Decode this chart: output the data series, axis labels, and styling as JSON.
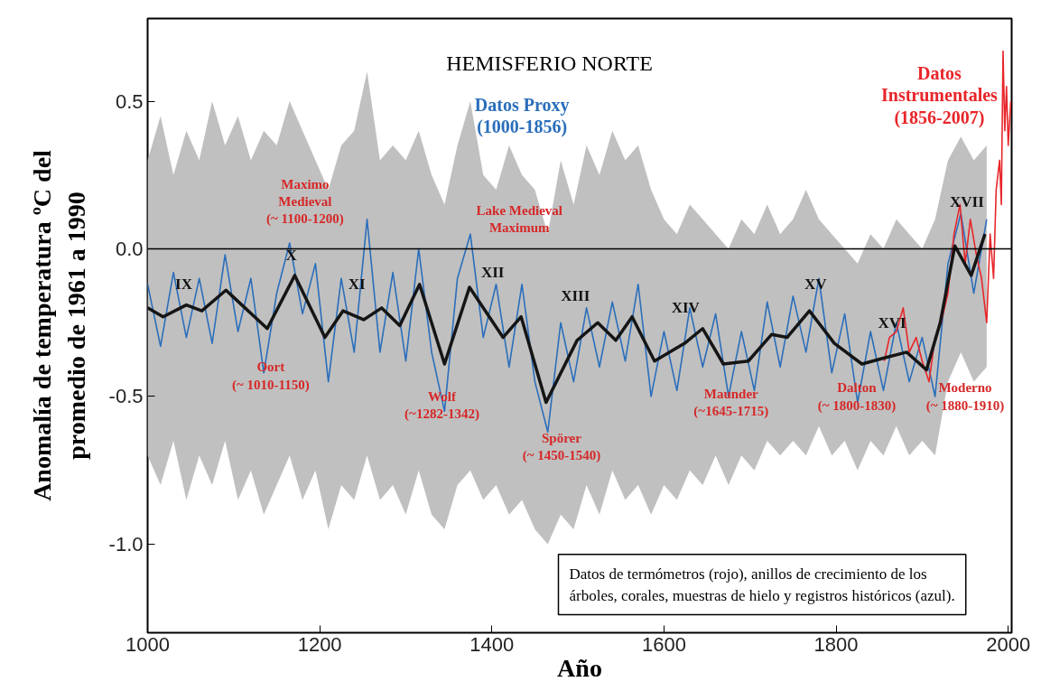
{
  "chart_data": {
    "type": "line",
    "title": "HEMISFERIO NORTE",
    "xlabel": "Año",
    "ylabel": "Anomalía de temperatura ºC del\npromedio de 1961 a 1990",
    "x": [
      1000,
      1015,
      1030,
      1045,
      1060,
      1075,
      1090,
      1105,
      1120,
      1135,
      1150,
      1165,
      1180,
      1195,
      1210,
      1225,
      1240,
      1255,
      1270,
      1285,
      1300,
      1315,
      1330,
      1345,
      1360,
      1375,
      1390,
      1405,
      1420,
      1435,
      1450,
      1465,
      1480,
      1495,
      1510,
      1525,
      1540,
      1555,
      1570,
      1585,
      1600,
      1615,
      1630,
      1645,
      1660,
      1675,
      1690,
      1705,
      1720,
      1735,
      1750,
      1765,
      1780,
      1795,
      1810,
      1825,
      1840,
      1855,
      1870,
      1885,
      1900,
      1915,
      1930,
      1945,
      1960,
      1975
    ],
    "series": [
      {
        "name": "Datos Proxy\n(1000-1856)",
        "color": "#2a6ebb",
        "values": [
          -0.12,
          -0.33,
          -0.08,
          -0.3,
          -0.1,
          -0.32,
          -0.02,
          -0.28,
          -0.1,
          -0.42,
          -0.15,
          0.02,
          -0.22,
          -0.05,
          -0.45,
          -0.1,
          -0.35,
          0.1,
          -0.35,
          -0.08,
          -0.38,
          0.0,
          -0.35,
          -0.55,
          -0.1,
          0.05,
          -0.3,
          -0.12,
          -0.4,
          -0.12,
          -0.45,
          -0.62,
          -0.25,
          -0.45,
          -0.2,
          -0.4,
          -0.18,
          -0.38,
          -0.12,
          -0.5,
          -0.28,
          -0.48,
          -0.2,
          -0.4,
          -0.22,
          -0.5,
          -0.28,
          -0.48,
          -0.18,
          -0.4,
          -0.16,
          -0.35,
          -0.1,
          -0.42,
          -0.22,
          -0.52,
          -0.28,
          -0.48,
          -0.25,
          -0.45,
          -0.3,
          -0.5,
          -0.05,
          0.12,
          -0.15,
          0.1
        ],
        "upper": [
          0.3,
          0.45,
          0.25,
          0.4,
          0.3,
          0.5,
          0.35,
          0.45,
          0.3,
          0.4,
          0.35,
          0.5,
          0.4,
          0.3,
          0.2,
          0.35,
          0.4,
          0.6,
          0.3,
          0.35,
          0.3,
          0.4,
          0.25,
          0.15,
          0.35,
          0.5,
          0.25,
          0.2,
          0.35,
          0.25,
          0.2,
          0.05,
          0.3,
          0.15,
          0.35,
          0.25,
          0.4,
          0.3,
          0.35,
          0.2,
          0.1,
          0.05,
          0.15,
          0.1,
          0.05,
          0.0,
          0.1,
          0.05,
          0.15,
          0.05,
          0.1,
          0.2,
          0.1,
          0.05,
          0.0,
          -0.05,
          0.05,
          0.0,
          0.1,
          0.05,
          0.0,
          0.1,
          0.3,
          0.38,
          0.3,
          0.35
        ],
        "lower": [
          -0.7,
          -0.8,
          -0.65,
          -0.85,
          -0.7,
          -0.8,
          -0.65,
          -0.85,
          -0.75,
          -0.9,
          -0.8,
          -0.7,
          -0.85,
          -0.75,
          -0.95,
          -0.8,
          -0.85,
          -0.7,
          -0.85,
          -0.8,
          -0.9,
          -0.75,
          -0.9,
          -0.95,
          -0.8,
          -0.75,
          -0.85,
          -0.8,
          -0.9,
          -0.85,
          -0.95,
          -1.0,
          -0.9,
          -0.95,
          -0.8,
          -0.9,
          -0.75,
          -0.85,
          -0.8,
          -0.9,
          -0.8,
          -0.85,
          -0.75,
          -0.8,
          -0.7,
          -0.8,
          -0.7,
          -0.75,
          -0.65,
          -0.7,
          -0.65,
          -0.7,
          -0.6,
          -0.7,
          -0.65,
          -0.75,
          -0.65,
          -0.7,
          -0.6,
          -0.7,
          -0.65,
          -0.7,
          -0.45,
          -0.35,
          -0.45,
          -0.4
        ]
      },
      {
        "name": "Datos\nInstrumentales\n(1856-2007)",
        "color": "#e8262a",
        "x": [
          1856,
          1862,
          1870,
          1878,
          1885,
          1893,
          1900,
          1908,
          1915,
          1922,
          1930,
          1937,
          1944,
          1950,
          1956,
          1963,
          1969,
          1975,
          1979,
          1983,
          1986,
          1990,
          1992,
          1994,
          1996,
          1998,
          2000,
          2003
        ],
        "values": [
          -0.38,
          -0.3,
          -0.28,
          -0.2,
          -0.35,
          -0.3,
          -0.38,
          -0.45,
          -0.3,
          -0.25,
          -0.15,
          0.05,
          0.15,
          -0.05,
          0.1,
          -0.02,
          -0.1,
          -0.25,
          0.05,
          -0.1,
          0.2,
          0.3,
          0.15,
          0.67,
          0.4,
          0.55,
          0.35,
          0.5
        ]
      },
      {
        "color": "#151515",
        "x": [
          1000,
          1018,
          1045,
          1063,
          1091,
          1139,
          1171,
          1206,
          1227,
          1251,
          1272,
          1293,
          1316,
          1345,
          1374,
          1413,
          1434,
          1463,
          1499,
          1523,
          1544,
          1563,
          1589,
          1624,
          1645,
          1669,
          1698,
          1725,
          1743,
          1769,
          1798,
          1830,
          1855,
          1882,
          1905,
          1921,
          1938,
          1957,
          1973
        ],
        "values": [
          -0.2,
          -0.23,
          -0.19,
          -0.21,
          -0.14,
          -0.27,
          -0.09,
          -0.3,
          -0.21,
          -0.24,
          -0.2,
          -0.26,
          -0.12,
          -0.39,
          -0.13,
          -0.3,
          -0.23,
          -0.52,
          -0.31,
          -0.25,
          -0.31,
          -0.23,
          -0.38,
          -0.32,
          -0.27,
          -0.39,
          -0.38,
          -0.29,
          -0.3,
          -0.21,
          -0.32,
          -0.39,
          -0.37,
          -0.35,
          -0.41,
          -0.25,
          0.01,
          -0.09,
          0.05
        ]
      }
    ],
    "xlim": [
      1000,
      2004
    ],
    "ylim": [
      -1.3,
      0.78
    ],
    "xticks": [
      1000,
      1200,
      1400,
      1600,
      1800,
      2000
    ],
    "yticks": [
      {
        "value": 0.5,
        "label": "0.5"
      },
      {
        "value": 0.0,
        "label": "0.0"
      },
      {
        "value": -0.5,
        "label": "-0.5"
      },
      {
        "value": -1.0,
        "label": "-1.0"
      }
    ],
    "ref_lines": [
      {
        "axis": "y",
        "value": 0,
        "color": "#000000"
      }
    ],
    "grid": false,
    "annotations": [
      "IX",
      "X",
      "XI",
      "XII",
      "XIII",
      "XIV",
      "XV",
      "XVI",
      "XVII",
      "Maximo\nMedieval\n(~ 1100-1200)",
      "Oort\n(~ 1010-1150)",
      "Wolf\n(~1282-1342)",
      "Lake Medieval\nMaximum",
      "Spörer\n(~ 1450-1540)",
      "Maunder\n(~1645-1715)",
      "Dalton\n(~ 1800-1830)",
      "Moderno\n(~ 1880-1910)",
      "Datos de termómetros (rojo), anillos de crecimiento de los\nárboles, corales, muestras de hielo y registros históricos (azul)."
    ]
  }
}
